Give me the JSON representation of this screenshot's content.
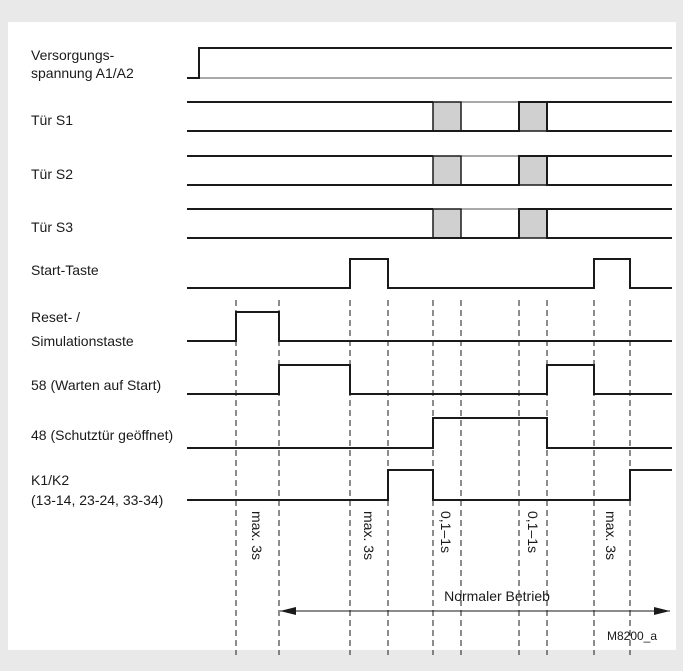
{
  "signals": [
    {
      "id": "versorgung",
      "lines": [
        "Versorgungs-",
        "spannung A1/A2"
      ]
    },
    {
      "id": "tuer_s1",
      "lines": [
        "Tür S1"
      ]
    },
    {
      "id": "tuer_s2",
      "lines": [
        "Tür S2"
      ]
    },
    {
      "id": "tuer_s3",
      "lines": [
        "Tür S3"
      ]
    },
    {
      "id": "start_taste",
      "lines": [
        "Start-Taste"
      ]
    },
    {
      "id": "reset",
      "lines": [
        "Reset- /",
        "Simulationstaste"
      ]
    },
    {
      "id": "out58",
      "lines": [
        "58 (Warten auf Start)"
      ]
    },
    {
      "id": "out48",
      "lines": [
        "48 (Schutztür geöffnet)"
      ]
    },
    {
      "id": "k1k2",
      "lines": [
        "K1/K2",
        "(13-14, 23-24, 33-34)"
      ]
    }
  ],
  "timing_annotations": [
    "max. 3s",
    "max. 3s",
    "0,1–1s",
    "0,1–1s",
    "max. 3s"
  ],
  "normal_operation_label": "Normaler Betrieb",
  "figure_id": "M8200_a",
  "colors": {
    "background": "#e9e9e9",
    "panel": "#ffffff",
    "line": "#1a1a1a",
    "transition_box": "#d0d0d0"
  }
}
